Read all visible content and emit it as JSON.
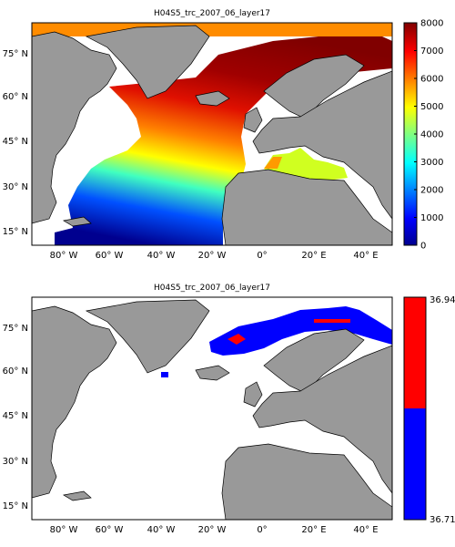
{
  "panels": [
    {
      "title": "H04S5_trc_2007_06_layer17",
      "lat_ticks": [
        "15° N",
        "30° N",
        "45° N",
        "60° N",
        "75° N"
      ],
      "lon_ticks": [
        "80° W",
        "60° W",
        "40° W",
        "20° W",
        "0°",
        "20° E",
        "40° E"
      ],
      "colorbar": {
        "type": "continuous",
        "colormap": "jet",
        "ticks": [
          "0",
          "1000",
          "2000",
          "3000",
          "4000",
          "5000",
          "6000",
          "7000",
          "8000"
        ],
        "min": 0,
        "max": 8000
      }
    },
    {
      "title": "H04S5_trc_2007_06_layer17",
      "lat_ticks": [
        "15° N",
        "30° N",
        "45° N",
        "60° N",
        "75° N"
      ],
      "lon_ticks": [
        "80° W",
        "60° W",
        "40° W",
        "20° W",
        "0°",
        "20° E",
        "40° E"
      ],
      "colorbar": {
        "type": "binary",
        "colors": [
          "#0000ff",
          "#ff0000"
        ],
        "ticks": [
          "36.712",
          "36.946"
        ],
        "min": 36.712,
        "max": 36.946
      }
    }
  ],
  "colors": {
    "land": "#999999",
    "nodata": "#ffffff"
  }
}
